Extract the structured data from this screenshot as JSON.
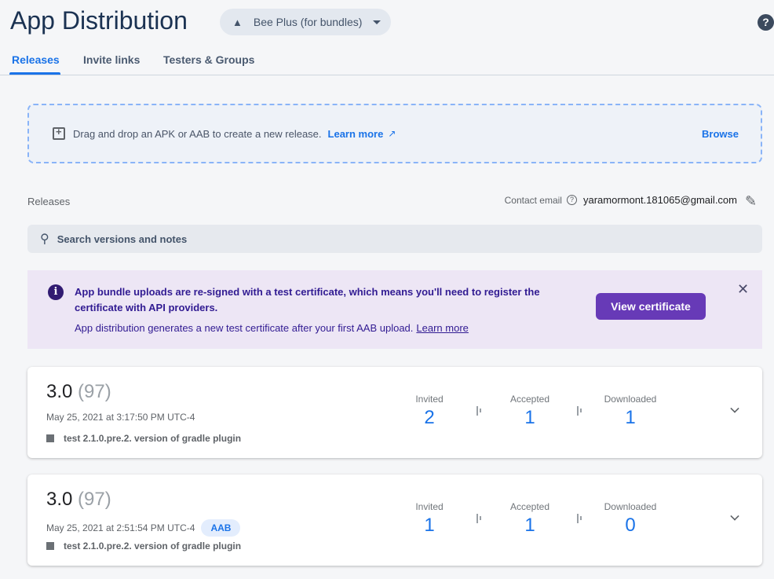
{
  "header": {
    "title": "App Distribution",
    "app_select": "Bee Plus (for bundles)",
    "help": "?"
  },
  "tabs": [
    {
      "label": "Releases",
      "active": true
    },
    {
      "label": "Invite links"
    },
    {
      "label": "Testers & Groups"
    }
  ],
  "dropzone": {
    "text": "Drag and drop an APK or AAB to create a new release.",
    "learn_more": "Learn more",
    "browse": "Browse"
  },
  "releases_label": "Releases",
  "contact": {
    "label": "Contact email",
    "email": "yaramormont.181065@gmail.com"
  },
  "search": {
    "placeholder": "Search versions and notes"
  },
  "banner": {
    "line1": "App bundle uploads are re-signed with a test certificate, which means you'll need to register the certificate with API providers.",
    "line2": "App distribution generates a new test certificate after your first AAB upload.",
    "learn_more": "Learn more",
    "button": "View certificate"
  },
  "stat_labels": {
    "invited": "Invited",
    "accepted": "Accepted",
    "downloaded": "Downloaded"
  },
  "releases": [
    {
      "version": "3.0",
      "build": "(97)",
      "date": "May 25, 2021 at 3:17:50 PM UTC-4",
      "badge": "",
      "note": "test 2.1.0.pre.2. version of gradle plugin",
      "invited": "2",
      "accepted": "1",
      "downloaded": "1"
    },
    {
      "version": "3.0",
      "build": "(97)",
      "date": "May 25, 2021 at 2:51:54 PM UTC-4",
      "badge": "AAB",
      "note": "test 2.1.0.pre.2. version of gradle plugin",
      "invited": "1",
      "accepted": "1",
      "downloaded": "0"
    }
  ]
}
